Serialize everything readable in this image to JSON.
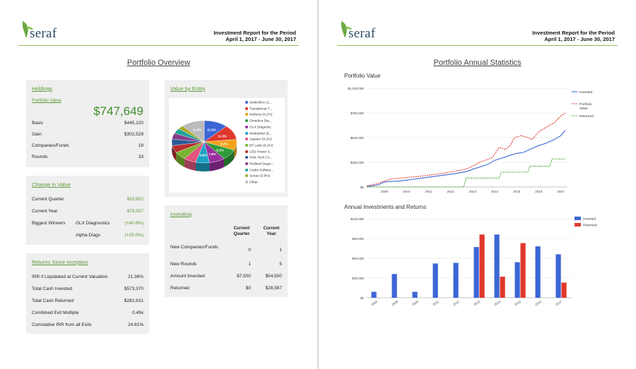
{
  "header": {
    "logo_text": "seraf",
    "report_line1": "Investment Report for the Period",
    "report_line2": "April 1, 2017 - June 30, 2017"
  },
  "left": {
    "page_title": "Portfolio Overview",
    "holdings": {
      "title": "Holdings",
      "subtitle": "Portfolio Value",
      "value": "$747,649",
      "rows": [
        {
          "label": "Basis",
          "value": "$445,120"
        },
        {
          "label": "Gain",
          "value": "$302,529"
        },
        {
          "label": "Companies/Funds",
          "value": "19"
        },
        {
          "label": "Rounds",
          "value": "33"
        }
      ]
    },
    "change": {
      "title": "Change in Value",
      "rows": [
        {
          "label": "Current Quarter",
          "value": "$33,802"
        },
        {
          "label": "Current Year",
          "value": "$78,507"
        }
      ],
      "winners_label": "Biggest Winners",
      "winners": [
        {
          "name": "GLX Diagnostics",
          "value": "(+40.6%)"
        },
        {
          "name": "Alpha Diags",
          "value": "(+25.0%)"
        }
      ]
    },
    "returns": {
      "title": "Returns Since Inception",
      "rows": [
        {
          "label": "IRR if Liquidated at Current Valuation",
          "value": "21.36%"
        },
        {
          "label": "Total Cash Invested",
          "value": "$573,370"
        },
        {
          "label": "Total Cash Returned",
          "value": "$282,631"
        },
        {
          "label": "Combined Exit Multiple",
          "value": "0.49x"
        },
        {
          "label": "Cumulative IRR from all Exits",
          "value": "24.81%"
        }
      ]
    },
    "entity": {
      "title": "Value by Entity",
      "legend": [
        {
          "label": "SwitchBox (1...",
          "color": "#3b66d6"
        },
        {
          "label": "Transitional T...",
          "color": "#e0382c"
        },
        {
          "label": "Nuthera (8.2%)",
          "color": "#f2a31b"
        },
        {
          "label": "Omedica Dia...",
          "color": "#2e9b3a"
        },
        {
          "label": "GLX Diagnost...",
          "color": "#9a2fa0"
        },
        {
          "label": "MediaMax (6...",
          "color": "#1ba2c4"
        },
        {
          "label": "Appster (6.2%)",
          "color": "#e2567d"
        },
        {
          "label": "BT Labs (6.2%)",
          "color": "#7bb531"
        },
        {
          "label": "LED Power S...",
          "color": "#b82d2d"
        },
        {
          "label": "SWL Tech Fu...",
          "color": "#2b5a9a"
        },
        {
          "label": "Redleaf Diagn...",
          "color": "#8a3a8a"
        },
        {
          "label": "Crabs Softwar...",
          "color": "#21a39a"
        },
        {
          "label": "Sonax (2.8%)",
          "color": "#a8a828"
        },
        {
          "label": "Other",
          "color": "#bbbbbb"
        }
      ],
      "slice_labels": [
        "11.9%",
        "11.3%",
        "8.2%",
        "8.2%",
        "7.8%",
        "6.8%",
        "11.9%"
      ]
    },
    "investing": {
      "title": "Investing",
      "col1": "Current Quarter",
      "col2": "Current Year",
      "rows": [
        {
          "label": "New Companies/Funds",
          "q": "0",
          "y": "1"
        },
        {
          "label": "New Rounds",
          "q": "1",
          "y": "5"
        },
        {
          "label": "Amount Invested",
          "q": "$7,500",
          "y": "$54,500"
        },
        {
          "label": "Returned",
          "q": "$0",
          "y": "$28,567"
        }
      ]
    }
  },
  "right": {
    "page_title": "Portfolio Annual Statistics",
    "line_title": "Portfolio Value",
    "bar_title": "Annual Investments and Returns"
  },
  "chart_data": [
    {
      "type": "line",
      "title": "Portfolio Value",
      "x_ticks": [
        "2009",
        "2010",
        "2011",
        "2012",
        "2013",
        "2014",
        "2015",
        "2016",
        "2017"
      ],
      "y_ticks": [
        "$1,000,000",
        "$750,000",
        "$500,000",
        "$250,000",
        "$0"
      ],
      "ylim": [
        0,
        1000000
      ],
      "xlim": [
        2008.5,
        2017.6
      ],
      "legend_position": "right",
      "series": [
        {
          "name": "Invested",
          "color": "#3b66d6",
          "dash": false,
          "x": [
            2008.5,
            2009,
            2009.3,
            2009.5,
            2010,
            2010.5,
            2011,
            2011.5,
            2012,
            2012.5,
            2013,
            2013.3,
            2013.6,
            2014,
            2014.3,
            2014.6,
            2015,
            2015.3,
            2015.6,
            2016,
            2016.3,
            2016.6,
            2017,
            2017.3,
            2017.5
          ],
          "y": [
            5000,
            20000,
            50000,
            55000,
            60000,
            75000,
            90000,
            105000,
            120000,
            135000,
            155000,
            180000,
            200000,
            230000,
            270000,
            290000,
            320000,
            340000,
            350000,
            390000,
            420000,
            440000,
            480000,
            520000,
            573000
          ]
        },
        {
          "name": "Portfolio Value",
          "color": "#e0382c",
          "dash": true,
          "x": [
            2008.5,
            2009,
            2009.3,
            2009.6,
            2010,
            2010.5,
            2011,
            2011.5,
            2012,
            2012.5,
            2013,
            2013.3,
            2013.6,
            2014,
            2014.2,
            2014.5,
            2014.8,
            2015,
            2015.2,
            2015.5,
            2015.8,
            2016,
            2016.3,
            2016.6,
            2017,
            2017.3,
            2017.5
          ],
          "y": [
            8000,
            35000,
            60000,
            80000,
            90000,
            100000,
            110000,
            125000,
            140000,
            160000,
            180000,
            210000,
            250000,
            280000,
            300000,
            400000,
            380000,
            420000,
            500000,
            520000,
            500000,
            480000,
            560000,
            600000,
            650000,
            720000,
            748000
          ]
        },
        {
          "name": "Returned",
          "color": "#4dab3c",
          "dash": true,
          "x": [
            2008.5,
            2012.9,
            2013.0,
            2014.5,
            2014.6,
            2015.8,
            2015.9,
            2016.8,
            2016.9,
            2017.5
          ],
          "y": [
            0,
            0,
            90000,
            90000,
            150000,
            150000,
            210000,
            210000,
            283000,
            283000
          ]
        }
      ]
    },
    {
      "type": "bar",
      "title": "Annual Investments and Returns",
      "categories": [
        "2006",
        "2008",
        "2009",
        "2011",
        "2012",
        "2013",
        "2014",
        "2015",
        "2016",
        "2017"
      ],
      "y_ticks": [
        "$100,000",
        "$90,000",
        "$60,000",
        "$30,000",
        "$0"
      ],
      "ylim": [
        0,
        120000
      ],
      "legend_position": "top-right",
      "series": [
        {
          "name": "Invested",
          "color": "#3b66d6",
          "values": [
            9000,
            36000,
            9000,
            52000,
            53000,
            77000,
            96000,
            54000,
            78000,
            66000
          ]
        },
        {
          "name": "Returned",
          "color": "#e0382c",
          "values": [
            0,
            0,
            0,
            0,
            0,
            96000,
            32000,
            83000,
            0,
            23000
          ]
        }
      ]
    }
  ]
}
